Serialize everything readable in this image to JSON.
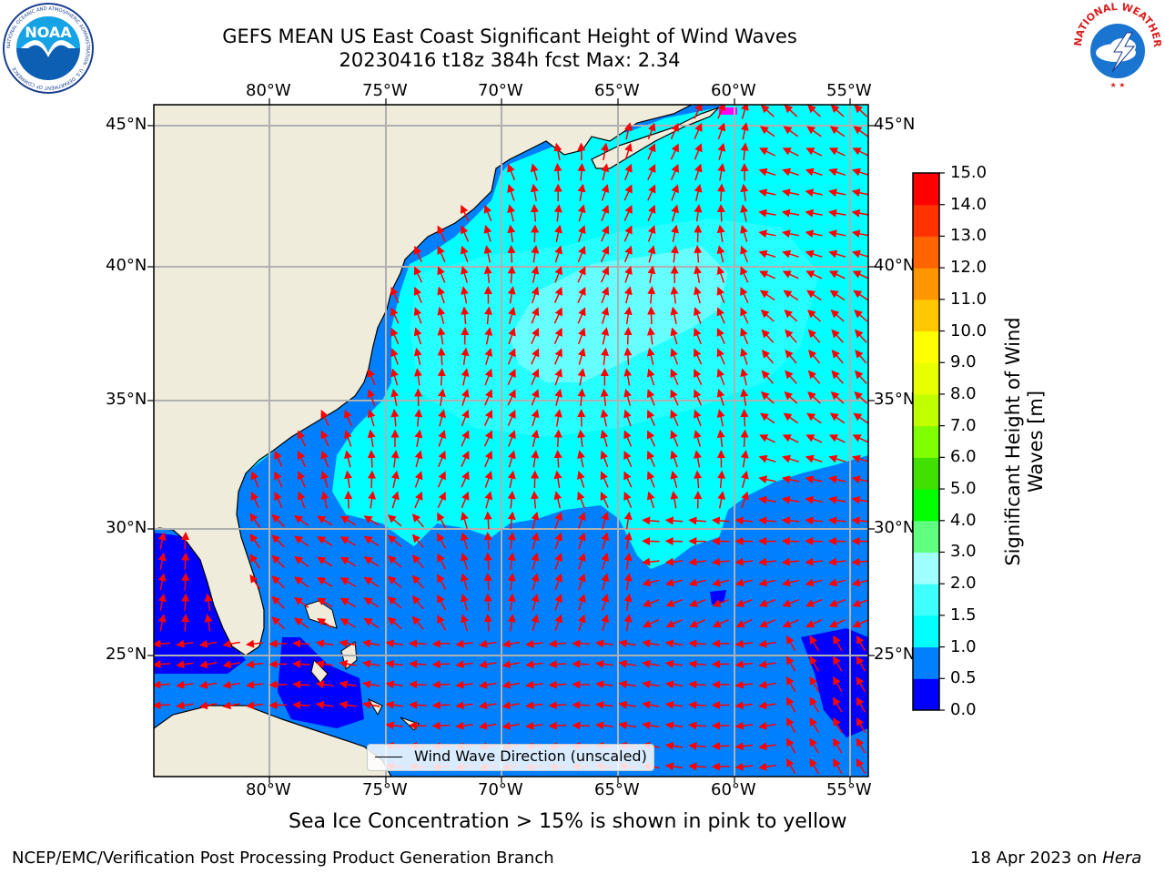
{
  "header": {
    "title_line1": "GEFS MEAN US East Coast Significant Height of Wind Waves",
    "title_line2": "20230416 t18z 384h fcst   Max: 2.34",
    "noaa_logo_text": "NOAA",
    "noaa_ring_text": "NATIONAL OCEANIC AND ATMOSPHERIC ADMINISTRATION · U.S. DEPARTMENT OF COMMERCE",
    "nws_ring_text": "NATIONAL WEATHER SERVICE"
  },
  "map": {
    "lon_labels": [
      "80°W",
      "75°W",
      "70°W",
      "65°W",
      "60°W",
      "55°W"
    ],
    "lat_labels": [
      "45°N",
      "40°N",
      "35°N",
      "30°N",
      "25°N"
    ],
    "legend_label": "Wind Wave Direction (unscaled)",
    "colors": {
      "land": "#efecdb",
      "grid": "#b0b0b0",
      "arrow": "#ff0000",
      "ice": "#ff00ff"
    }
  },
  "colorbar": {
    "title_line1": "Significant Height of Wind",
    "title_line2": "Waves [m]",
    "ticks": [
      "0.0",
      "0.5",
      "1.0",
      "1.5",
      "2.0",
      "3.0",
      "4.0",
      "5.0",
      "6.0",
      "7.0",
      "8.0",
      "9.0",
      "10.0",
      "11.0",
      "12.0",
      "13.0",
      "14.0",
      "15.0"
    ],
    "colors": [
      "#0000ff",
      "#0080ff",
      "#00ffff",
      "#40ffff",
      "#a0ffff",
      "#60ff80",
      "#00ff00",
      "#40e000",
      "#80ff00",
      "#c0ff00",
      "#e8ff00",
      "#ffff00",
      "#ffc800",
      "#ff9600",
      "#ff6400",
      "#ff3200",
      "#ff0000"
    ]
  },
  "chart_data": {
    "type": "map",
    "variable": "Significant Height of Wind Waves [m]",
    "max": 2.34,
    "lon_range": [
      -85,
      -54
    ],
    "lat_range": [
      20.5,
      46
    ],
    "levels": [
      0.0,
      0.5,
      1.0,
      1.5,
      2.0,
      3.0,
      4.0,
      5.0,
      6.0,
      7.0,
      8.0,
      9.0,
      10.0,
      11.0,
      12.0,
      13.0,
      14.0,
      15.0
    ]
  },
  "notes": {
    "sea_ice": "Sea Ice Concentration > 15% is shown in pink to yellow"
  },
  "footer": {
    "left": "NCEP/EMC/Verification Post Processing Product Generation Branch",
    "right_date": "18 Apr 2023 on",
    "right_machine": "Hera"
  }
}
